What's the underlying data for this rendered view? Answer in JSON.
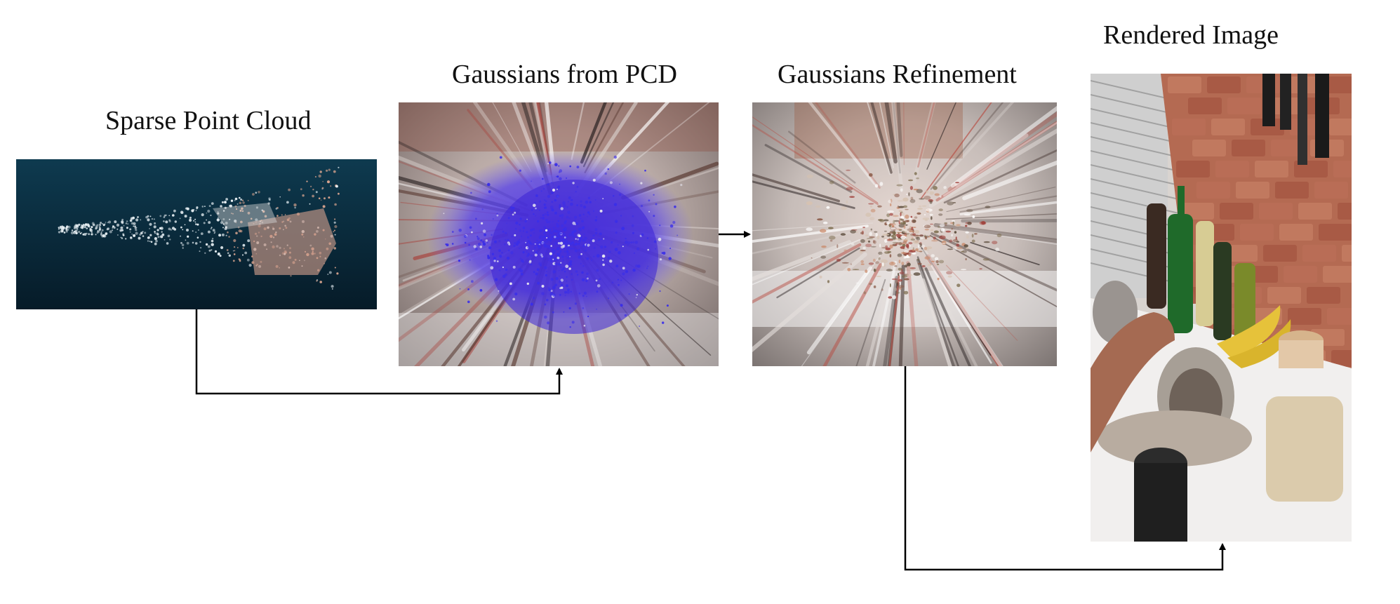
{
  "diagram": {
    "steps": [
      {
        "id": "sparse",
        "title": "Sparse Point Cloud"
      },
      {
        "id": "pcd",
        "title": "Gaussians from PCD"
      },
      {
        "id": "refine",
        "title": "Gaussians Refinement"
      },
      {
        "id": "render",
        "title": "Rendered Image"
      }
    ],
    "connections": [
      {
        "from": "sparse",
        "to": "pcd"
      },
      {
        "from": "pcd",
        "to": "refine"
      },
      {
        "from": "refine",
        "to": "render"
      }
    ]
  }
}
